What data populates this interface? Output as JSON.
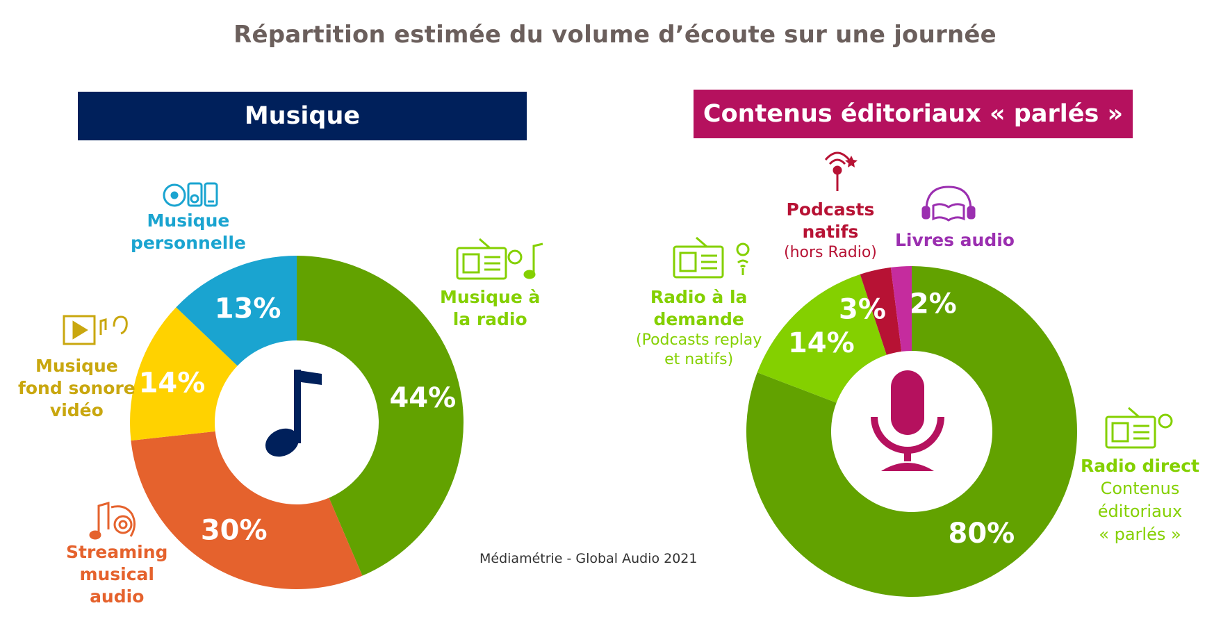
{
  "title": "Répartition estimée du volume d’écoute sur une journée",
  "source": "Médiamétrie - Global Audio 2021",
  "colors": {
    "green": "#62a200",
    "light_green": "#84d000",
    "blue": "#1aa4d0",
    "yellow": "#ffd200",
    "orange": "#e5622d",
    "crimson": "#b71234",
    "magenta": "#c52c9e",
    "navy": "#00205b",
    "raspberry": "#b5115e"
  },
  "chart_data": [
    {
      "type": "pie",
      "title": "Musique",
      "series": [
        {
          "name": "Musique à la radio",
          "value": 44,
          "label": "44%",
          "color": "#62a200",
          "label_lines": [
            "Musique à",
            "la radio"
          ]
        },
        {
          "name": "Streaming musical audio",
          "value": 30,
          "label": "30%",
          "color": "#e5622d",
          "label_lines": [
            "Streaming",
            "musical",
            "audio"
          ]
        },
        {
          "name": "Musique fond sonore vidéo",
          "value": 14,
          "label": "14%",
          "color": "#ffd200",
          "label_lines": [
            "Musique",
            "fond sonore",
            "vidéo"
          ]
        },
        {
          "name": "Musique personnelle",
          "value": 13,
          "label": "13%",
          "color": "#1aa4d0",
          "label_lines": [
            "Musique",
            "personnelle"
          ]
        }
      ]
    },
    {
      "type": "pie",
      "title": "Contenus éditoriaux « parlés »",
      "series": [
        {
          "name": "Radio direct",
          "value": 80,
          "label": "80%",
          "color": "#62a200",
          "label_lines": [
            "Radio direct"
          ],
          "sub_lines": [
            "Contenus",
            "éditoriaux",
            "« parlés »"
          ]
        },
        {
          "name": "Radio à la demande",
          "value": 14,
          "label": "14%",
          "color": "#84d000",
          "label_lines": [
            "Radio à la",
            "demande"
          ],
          "sub_lines": [
            "(Podcasts replay",
            "et natifs)"
          ]
        },
        {
          "name": "Podcasts natifs",
          "value": 3,
          "label": "3%",
          "color": "#b71234",
          "label_lines": [
            "Podcasts",
            "natifs"
          ],
          "sub_lines": [
            "(hors Radio)"
          ]
        },
        {
          "name": "Livres audio",
          "value": 2,
          "label": "2%",
          "color": "#c52c9e",
          "label_lines": [
            "Livres audio"
          ]
        }
      ]
    }
  ],
  "icons": {
    "music_center": "music-note-icon",
    "spoken_center": "microphone-icon",
    "radio": "radio-icon",
    "streaming": "streaming-icon",
    "video": "video-play-icon",
    "personal": "cd-player-phone-icon",
    "podcast": "podcast-antenna-icon",
    "audiobook": "headphones-book-icon"
  }
}
